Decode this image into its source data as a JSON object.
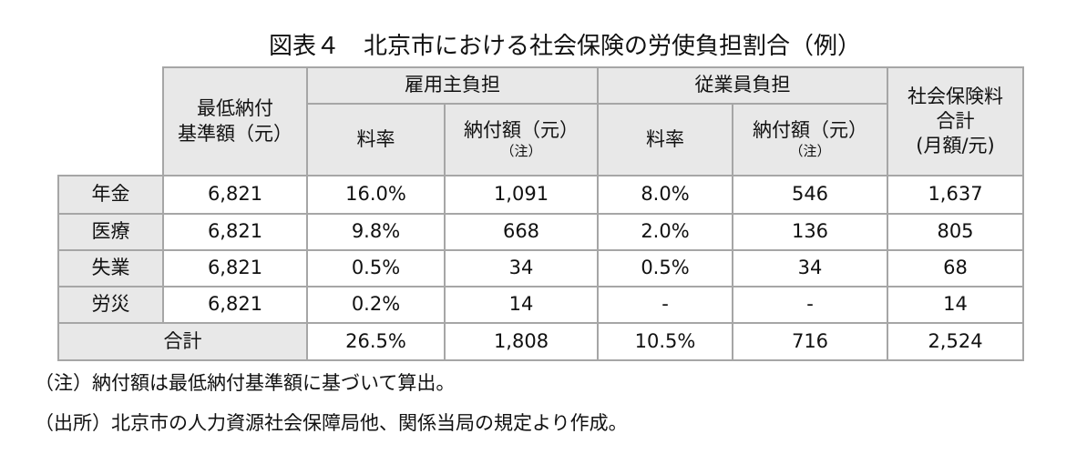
{
  "title": "図表４　北京市における社会保険の労使負担割合（例）",
  "table": {
    "header": {
      "base": [
        "最低納付",
        "基準額（元）"
      ],
      "employer": {
        "label": "雇用主負担",
        "rate": "料率",
        "amount": "納付額（元）",
        "amount_note": "（注）"
      },
      "employee": {
        "label": "従業員負担",
        "rate": "料率",
        "amount": "納付額（元）",
        "amount_note": "（注）"
      },
      "total": [
        "社会保険料",
        "合計",
        "(月額/元)"
      ]
    },
    "rows": [
      {
        "label": "年金",
        "cells": [
          "6,821",
          "16.0%",
          "1,091",
          "8.0%",
          "546",
          "1,637"
        ]
      },
      {
        "label": "医療",
        "cells": [
          "6,821",
          "9.8%",
          "668",
          "2.0%",
          "136",
          "805"
        ]
      },
      {
        "label": "失業",
        "cells": [
          "6,821",
          "0.5%",
          "34",
          "0.5%",
          "34",
          "68"
        ]
      },
      {
        "label": "労災",
        "cells": [
          "6,821",
          "0.2%",
          "14",
          "-",
          "-",
          "14"
        ]
      }
    ],
    "total_row": {
      "label": "合計",
      "cells": [
        "26.5%",
        "1,808",
        "10.5%",
        "716",
        "2,524"
      ]
    }
  },
  "notes": [
    "（注）納付額は最低納付基準額に基づいて算出。",
    "（出所）北京市の人力資源社会保障局他、関係当局の規定より作成。"
  ]
}
